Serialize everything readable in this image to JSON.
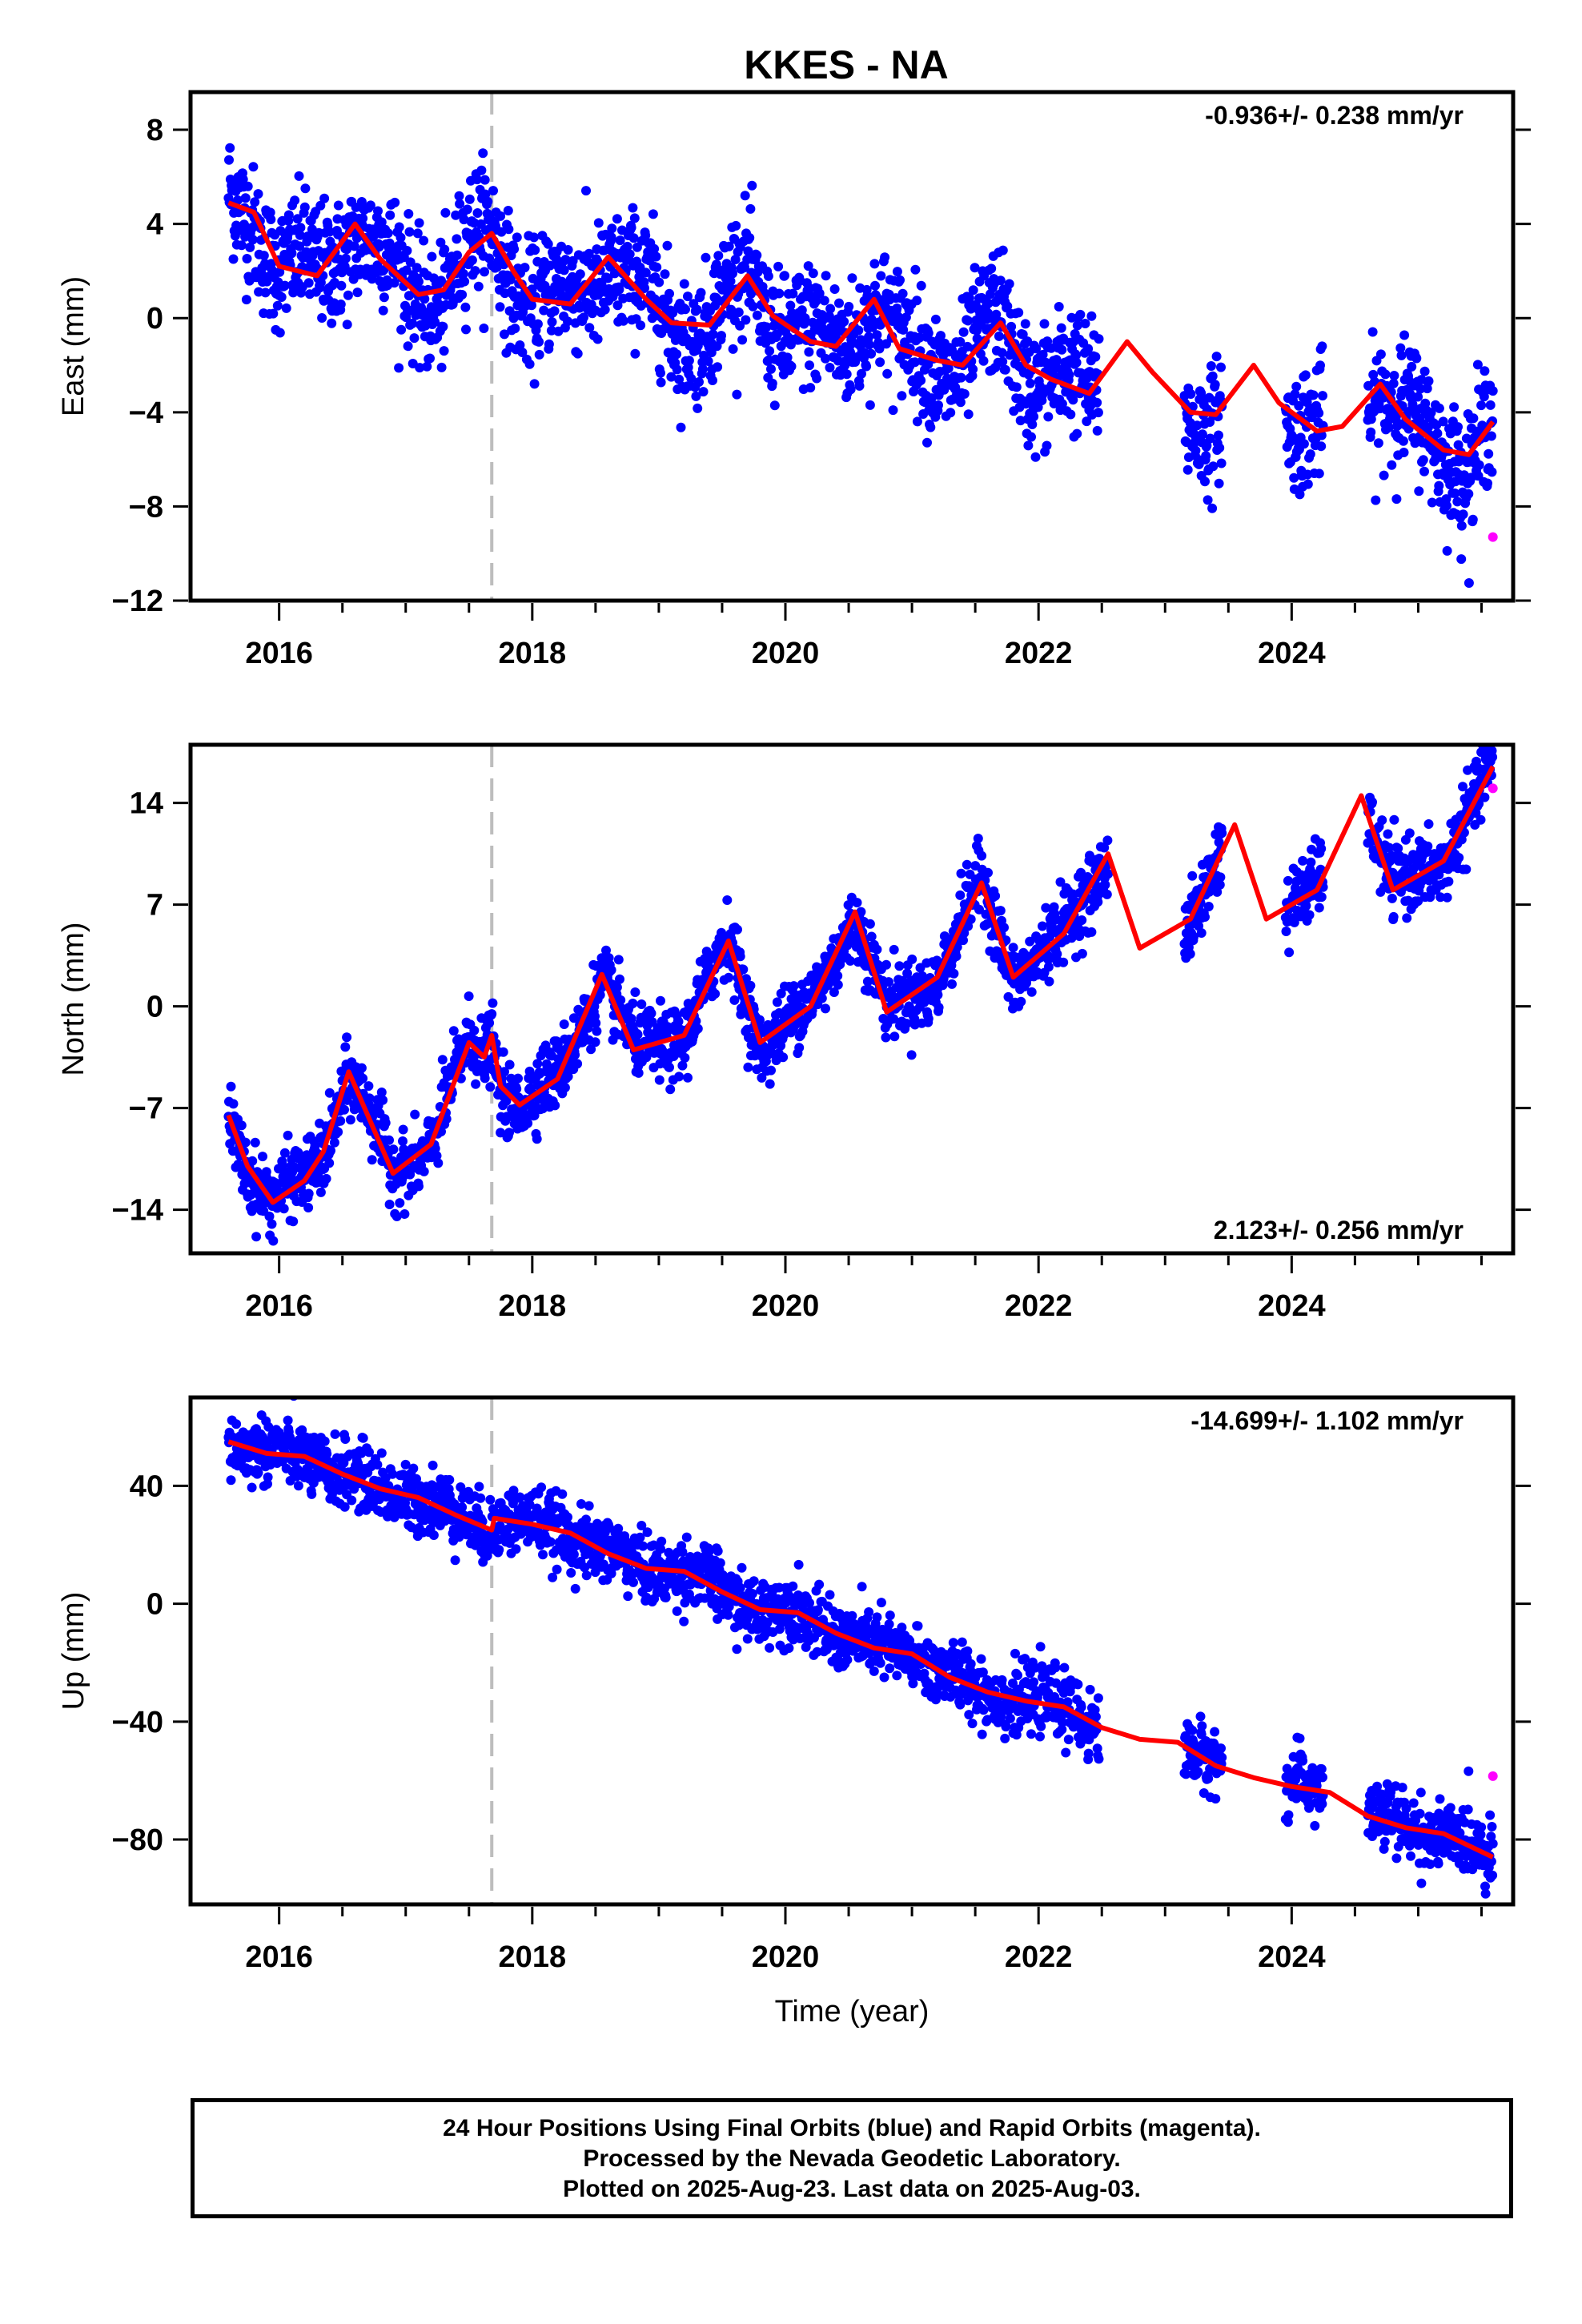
{
  "title": "KKES - NA",
  "colors": {
    "final": "#0000ff",
    "rapid": "#ff00ff",
    "model": "#ff0000",
    "event": "#bdbdbd"
  },
  "footer": {
    "line1": "24 Hour Positions Using Final Orbits (blue) and Rapid Orbits (magenta).",
    "line2": "Processed by the Nevada Geodetic Laboratory.",
    "line3": "Plotted on 2025-Aug-23. Last data on 2025-Aug-03."
  },
  "chart_data": [
    {
      "type": "scatter",
      "component": "east",
      "ylabel": "East (mm)",
      "xlabel": "",
      "xlim": [
        2015.3,
        2025.75
      ],
      "ylim": [
        -12,
        9.6
      ],
      "xticks": [
        2016,
        2018,
        2020,
        2022,
        2024
      ],
      "yticks": [
        -12,
        -8,
        -4,
        0,
        4,
        8
      ],
      "rate_text": "-0.936+/- 0.238 mm/yr",
      "rate_position": "top-right",
      "event_line_x": 2017.68,
      "data_span": [
        2015.6,
        2025.59
      ],
      "rapid_point": [
        2025.59,
        -9.3
      ],
      "model_curve": {
        "x": [
          2015.6,
          2015.8,
          2016.0,
          2016.3,
          2016.6,
          2016.8,
          2017.1,
          2017.3,
          2017.5,
          2017.68,
          2017.85,
          2018.0,
          2018.3,
          2018.6,
          2018.9,
          2019.1,
          2019.4,
          2019.7,
          2019.9,
          2020.2,
          2020.4,
          2020.7,
          2020.9,
          2021.2,
          2021.4,
          2021.7,
          2021.9,
          2022.1,
          2022.4,
          2022.7,
          2022.9,
          2023.2,
          2023.4,
          2023.7,
          2023.9,
          2024.2,
          2024.4,
          2024.7,
          2024.9,
          2025.2,
          2025.4,
          2025.59
        ],
        "y": [
          4.9,
          4.5,
          2.2,
          1.8,
          4.0,
          2.5,
          1.0,
          1.2,
          2.8,
          3.6,
          2.0,
          0.8,
          0.6,
          2.6,
          0.8,
          -0.2,
          -0.3,
          1.8,
          0.1,
          -1.0,
          -1.2,
          0.8,
          -1.3,
          -1.8,
          -2.0,
          -0.2,
          -2.0,
          -2.6,
          -3.2,
          -1.0,
          -2.3,
          -4.0,
          -4.1,
          -2.0,
          -3.6,
          -4.8,
          -4.6,
          -2.8,
          -4.3,
          -5.6,
          -5.8,
          -4.4
        ]
      },
      "scatter_model": {
        "noise": 1.3,
        "seasonal_amp": 1.4
      },
      "data_gaps": [
        [
          2022.48,
          2023.15
        ],
        [
          2023.45,
          2023.95
        ],
        [
          2024.25,
          2024.6
        ]
      ]
    },
    {
      "type": "scatter",
      "component": "north",
      "ylabel": "North (mm)",
      "xlabel": "",
      "xlim": [
        2015.3,
        2025.75
      ],
      "ylim": [
        -17,
        18
      ],
      "xticks": [
        2016,
        2018,
        2020,
        2022,
        2024
      ],
      "yticks": [
        -14,
        -7,
        0,
        7,
        14
      ],
      "rate_text": "2.123+/- 0.256 mm/yr",
      "rate_position": "bottom-right",
      "event_line_x": 2017.68,
      "data_span": [
        2015.6,
        2025.59
      ],
      "rapid_point": [
        2025.59,
        15.0
      ],
      "model_curve": {
        "x": [
          2015.6,
          2015.75,
          2015.95,
          2016.2,
          2016.35,
          2016.55,
          2016.75,
          2016.9,
          2017.2,
          2017.5,
          2017.62,
          2017.68,
          2017.75,
          2017.9,
          2018.2,
          2018.55,
          2018.8,
          2019.2,
          2019.55,
          2019.8,
          2020.2,
          2020.55,
          2020.8,
          2021.2,
          2021.55,
          2021.8,
          2022.2,
          2022.55,
          2022.8,
          2023.2,
          2023.55,
          2023.8,
          2024.2,
          2024.55,
          2024.8,
          2025.2,
          2025.59
        ],
        "y": [
          -7.5,
          -11.0,
          -13.5,
          -12.0,
          -10.0,
          -4.5,
          -8.5,
          -11.5,
          -9.5,
          -2.5,
          -3.5,
          -2.0,
          -5.5,
          -6.8,
          -5.0,
          2.2,
          -3.0,
          -2.0,
          4.5,
          -2.5,
          0.0,
          6.5,
          -0.4,
          2.0,
          8.5,
          2.0,
          5.0,
          10.5,
          4.0,
          6.0,
          12.5,
          6.0,
          8.0,
          14.5,
          8.0,
          10.0,
          16.5
        ]
      },
      "scatter_model": {
        "noise": 1.2,
        "seasonal_amp": 1.0
      },
      "data_gaps": [
        [
          2022.55,
          2023.15
        ],
        [
          2023.45,
          2023.95
        ],
        [
          2024.25,
          2024.6
        ]
      ]
    },
    {
      "type": "scatter",
      "component": "up",
      "ylabel": "Up (mm)",
      "xlabel": "Time (year)",
      "xlim": [
        2015.3,
        2025.75
      ],
      "ylim": [
        -102,
        70
      ],
      "xticks": [
        2016,
        2018,
        2020,
        2022,
        2024
      ],
      "yticks": [
        -80,
        -40,
        0,
        40
      ],
      "rate_text": "-14.699+/- 1.102 mm/yr",
      "rate_position": "top-right",
      "event_line_x": 2017.68,
      "data_span": [
        2015.6,
        2025.59
      ],
      "rapid_point": [
        2025.59,
        -58.5
      ],
      "model_curve": {
        "x": [
          2015.6,
          2015.9,
          2016.2,
          2016.5,
          2016.8,
          2017.1,
          2017.4,
          2017.68,
          2017.7,
          2018.0,
          2018.3,
          2018.6,
          2018.9,
          2019.2,
          2019.5,
          2019.8,
          2020.1,
          2020.4,
          2020.7,
          2021.0,
          2021.3,
          2021.6,
          2021.9,
          2022.2,
          2022.5,
          2022.8,
          2023.1,
          2023.4,
          2023.7,
          2024.0,
          2024.3,
          2024.6,
          2024.9,
          2025.2,
          2025.59
        ],
        "y": [
          55,
          51,
          50,
          44,
          39,
          36,
          30,
          25,
          29,
          27,
          24,
          17,
          12,
          11,
          4,
          -2,
          -3,
          -10,
          -15,
          -17,
          -25,
          -30,
          -33,
          -35,
          -42,
          -46,
          -47,
          -55,
          -59,
          -62,
          -64,
          -72,
          -76,
          -78,
          -86
        ]
      },
      "scatter_model": {
        "noise": 5.5,
        "seasonal_amp": 3.0
      },
      "data_gaps": [
        [
          2022.48,
          2023.15
        ],
        [
          2023.45,
          2023.95
        ],
        [
          2024.25,
          2024.6
        ]
      ]
    }
  ]
}
